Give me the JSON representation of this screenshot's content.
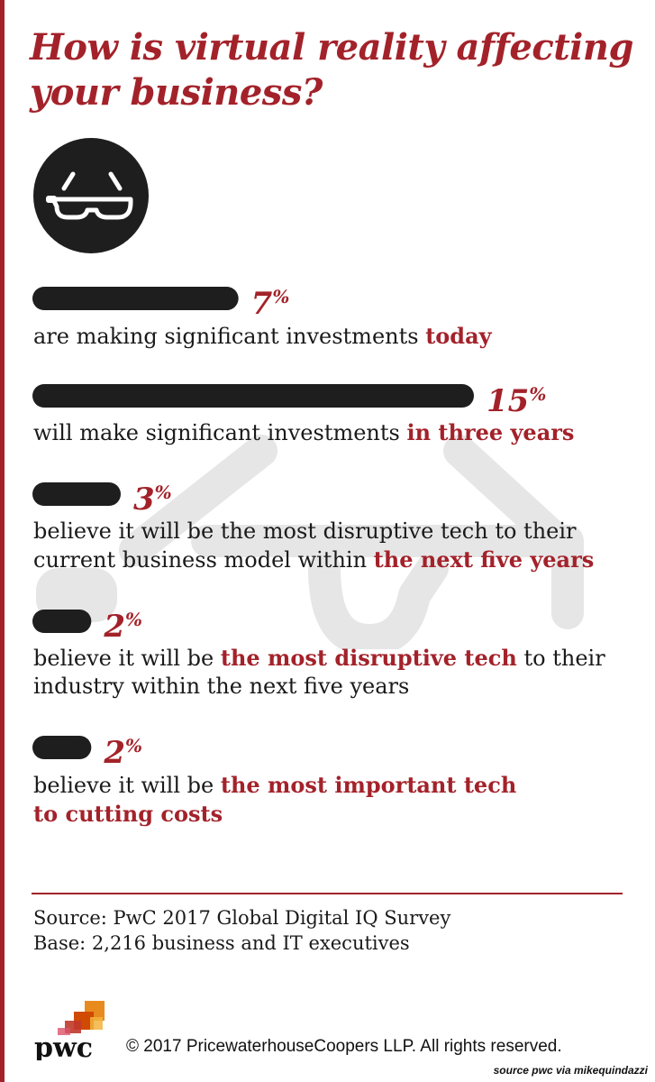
{
  "title": "How is virtual reality affecting your business?",
  "colors": {
    "accent": "#a3222a",
    "bar": "#1e1e1e",
    "watermark": "#e6e6e6"
  },
  "icons": {
    "header": "vr-glasses-icon",
    "watermark": "vr-glasses-outline-icon",
    "logo": "pwc-logo"
  },
  "chart_data": {
    "type": "bar",
    "orientation": "horizontal",
    "values": [
      7,
      15,
      3,
      2,
      2
    ],
    "labels": [
      "7%",
      "15%",
      "3%",
      "2%",
      "2%"
    ],
    "items": [
      {
        "pct": "7",
        "value": 7,
        "text_pre": "are making significant investments ",
        "text_hl": "today",
        "text_post": ""
      },
      {
        "pct": "15",
        "value": 15,
        "text_pre": "will make significant investments ",
        "text_hl": "in three years",
        "text_post": ""
      },
      {
        "pct": "3",
        "value": 3,
        "text_pre": "believe it will be the most disruptive tech to their current business model within ",
        "text_hl": "the next five years",
        "text_post": ""
      },
      {
        "pct": "2",
        "value": 2,
        "text_pre": "believe it will be ",
        "text_hl": "the most disruptive tech",
        "text_post": " to their industry within the next five years"
      },
      {
        "pct": "2",
        "value": 2,
        "text_pre": "believe it will be ",
        "text_hl": "the most important tech to cutting costs",
        "text_post": ""
      }
    ]
  },
  "source": {
    "line1": "Source: PwC 2017 Global Digital IQ Survey",
    "line2": "Base: 2,216 business and IT executives"
  },
  "footer": {
    "logo_text": "pwc",
    "copyright": "© 2017 PricewaterhouseCoopers LLP.  All rights reserved.",
    "credit": "source pwc via mikequindazzi"
  }
}
